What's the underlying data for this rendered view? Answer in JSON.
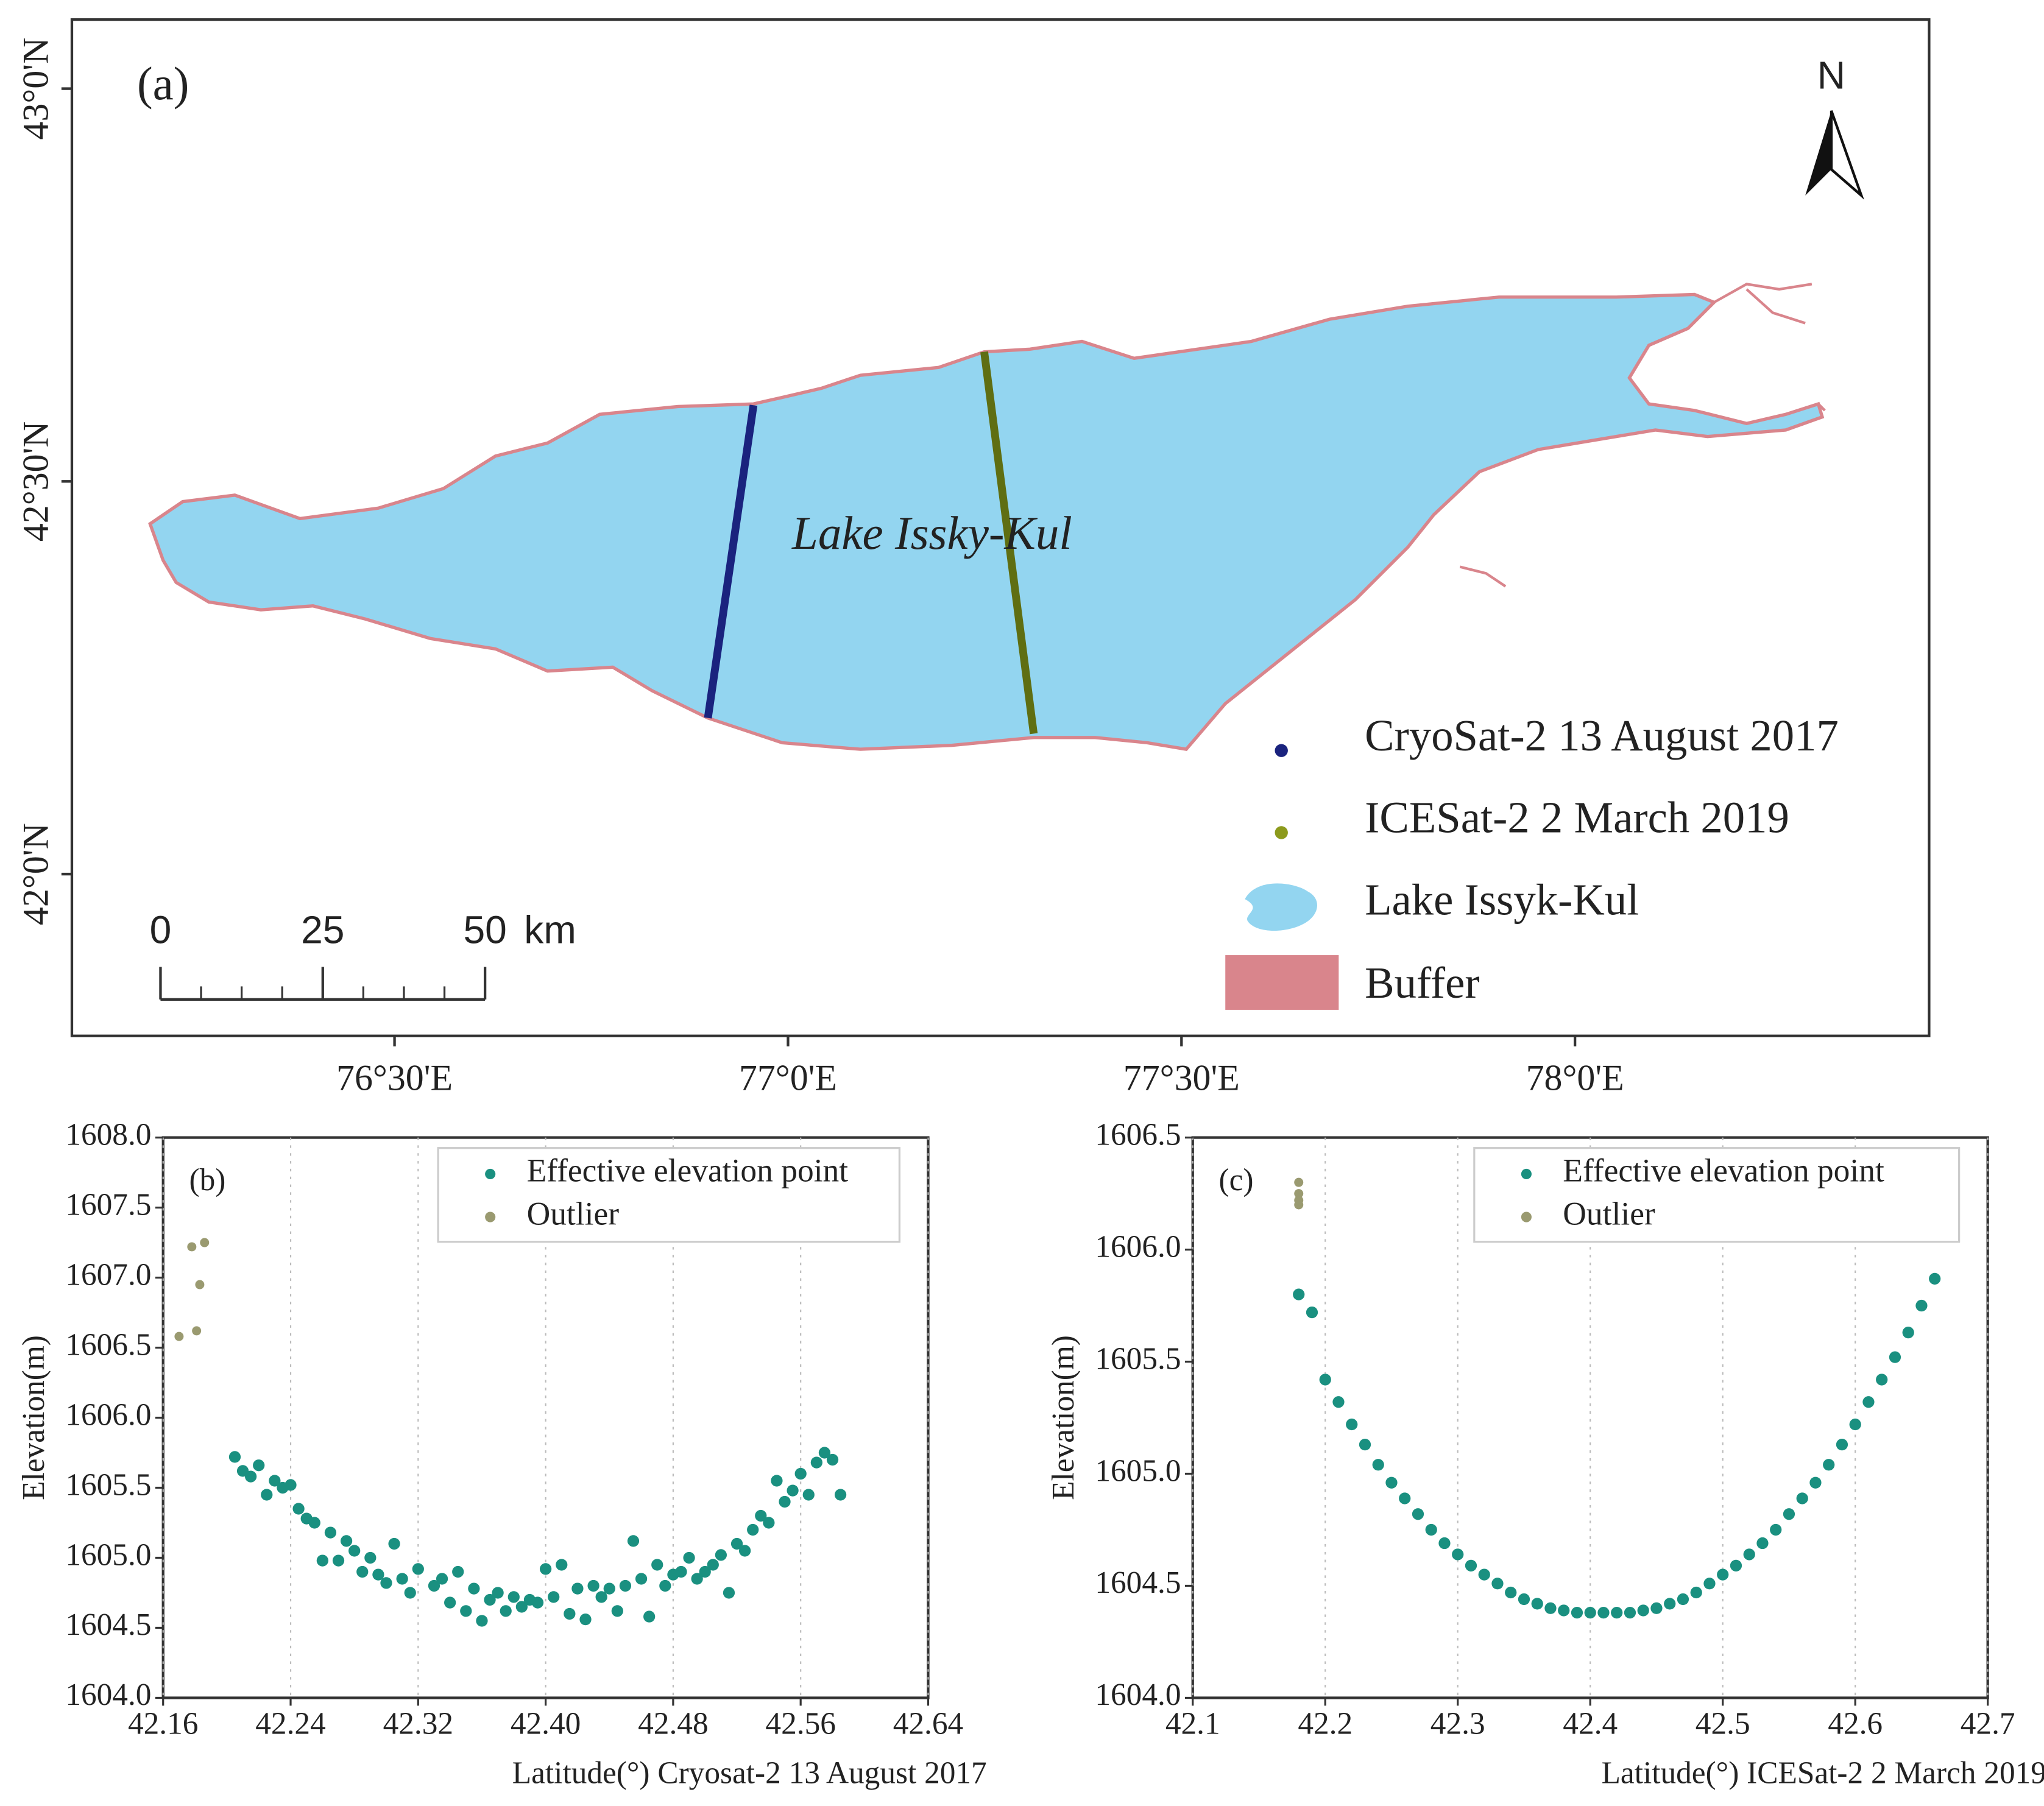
{
  "map": {
    "label": "(a)",
    "north": "N",
    "lake_label": "Lake Issky-Kul",
    "xlim": [
      76.09,
      78.45
    ],
    "ylim": [
      41.794,
      43.088
    ],
    "lat_ticks": [
      {
        "value": 43,
        "label": "43°0'N"
      },
      {
        "value": 42.5,
        "label": "42°30'N"
      },
      {
        "value": 42,
        "label": "42°0'N"
      }
    ],
    "lon_ticks": [
      {
        "value": 76.5,
        "label": "76°30'E"
      },
      {
        "value": 77,
        "label": "77°0'E"
      },
      {
        "value": 77.5,
        "label": "77°30'E"
      },
      {
        "value": 78,
        "label": "78°0'E"
      }
    ],
    "scale_bar": {
      "ticks": [
        0,
        25,
        50
      ],
      "unit": "km"
    },
    "legend": [
      {
        "label": "CryoSat-2 13 August 2017",
        "color": "#1a237e"
      },
      {
        "label": "ICESat-2  2 March 2019",
        "color": "#8c9a1c"
      },
      {
        "label": "Lake Issyk-Kul",
        "color": "#93d5f0"
      },
      {
        "label": "Buffer",
        "color": "#d9858c"
      }
    ]
  },
  "chart_data": [
    {
      "type": "scatter",
      "label": "(b)",
      "xlabel": "Latitude(°)   Cryosat-2  13 August  2017",
      "ylabel": "Elevation(m)",
      "xlim": [
        42.16,
        42.64
      ],
      "ylim": [
        1604,
        1608
      ],
      "xticks": [
        42.16,
        42.24,
        42.32,
        {
          "value": 42.4,
          "label": "42.40"
        },
        42.48,
        42.56,
        42.64
      ],
      "yticks": [
        {
          "value": 1604,
          "label": "1604.0"
        },
        1604.5,
        {
          "value": 1605,
          "label": "1605.0"
        },
        1605.5,
        {
          "value": 1606,
          "label": "1606.0"
        },
        1606.5,
        {
          "value": 1607,
          "label": "1607.0"
        },
        1607.5,
        {
          "value": 1608,
          "label": "1608.0"
        }
      ],
      "grid": true,
      "legend": "upper right",
      "series": [
        {
          "name": "Effective elevation point",
          "color": "#1a9080",
          "x": [
            42.205,
            42.21,
            42.215,
            42.22,
            42.225,
            42.23,
            42.235,
            42.24,
            42.245,
            42.25,
            42.255,
            42.26,
            42.265,
            42.27,
            42.275,
            42.28,
            42.285,
            42.29,
            42.295,
            42.3,
            42.305,
            42.31,
            42.315,
            42.32,
            42.33,
            42.335,
            42.34,
            42.345,
            42.35,
            42.355,
            42.36,
            42.365,
            42.37,
            42.375,
            42.38,
            42.385,
            42.39,
            42.395,
            42.4,
            42.405,
            42.41,
            42.415,
            42.42,
            42.425,
            42.43,
            42.435,
            42.44,
            42.445,
            42.45,
            42.455,
            42.46,
            42.465,
            42.47,
            42.475,
            42.48,
            42.485,
            42.49,
            42.495,
            42.5,
            42.505,
            42.51,
            42.515,
            42.52,
            42.525,
            42.53,
            42.535,
            42.54,
            42.545,
            42.55,
            42.555,
            42.56,
            42.565,
            42.57,
            42.575,
            42.58,
            42.585
          ],
          "values": [
            1605.72,
            1605.62,
            1605.58,
            1605.66,
            1605.45,
            1605.55,
            1605.5,
            1605.52,
            1605.35,
            1605.28,
            1605.25,
            1604.98,
            1605.18,
            1604.98,
            1605.12,
            1605.05,
            1604.9,
            1605.0,
            1604.88,
            1604.82,
            1605.1,
            1604.85,
            1604.75,
            1604.92,
            1604.8,
            1604.85,
            1604.68,
            1604.9,
            1604.62,
            1604.78,
            1604.55,
            1604.7,
            1604.75,
            1604.62,
            1604.72,
            1604.65,
            1604.7,
            1604.68,
            1604.92,
            1604.72,
            1604.95,
            1604.6,
            1604.78,
            1604.56,
            1604.8,
            1604.72,
            1604.78,
            1604.62,
            1604.8,
            1605.12,
            1604.85,
            1604.58,
            1604.95,
            1604.8,
            1604.88,
            1604.9,
            1605.0,
            1604.85,
            1604.9,
            1604.95,
            1605.02,
            1604.75,
            1605.1,
            1605.05,
            1605.2,
            1605.3,
            1605.25,
            1605.55,
            1605.4,
            1605.48,
            1605.6,
            1605.45,
            1605.68,
            1605.75,
            1605.7,
            1605.45
          ]
        },
        {
          "name": "Outlier",
          "color": "#9a9a70",
          "x": [
            42.17,
            42.178,
            42.186,
            42.183,
            42.181
          ],
          "values": [
            1606.58,
            1607.22,
            1607.25,
            1606.95,
            1606.62
          ]
        }
      ]
    },
    {
      "type": "scatter",
      "label": "(c)",
      "xlabel": "Latitude(°)   ICESat-2  2 March 2019",
      "ylabel": "Elevation(m)",
      "xlim": [
        42.1,
        42.7
      ],
      "ylim": [
        1604,
        1606.5
      ],
      "xticks": [
        42.1,
        42.2,
        42.3,
        42.4,
        42.5,
        42.6,
        42.7
      ],
      "yticks": [
        {
          "value": 1604,
          "label": "1604.0"
        },
        1604.5,
        {
          "value": 1605,
          "label": "1605.0"
        },
        1605.5,
        {
          "value": 1606,
          "label": "1606.0"
        },
        1606.5
      ],
      "grid": true,
      "legend": "upper right",
      "series": [
        {
          "name": "Effective elevation point",
          "color": "#1a9080",
          "x": [
            42.18,
            42.19,
            42.2,
            42.21,
            42.22,
            42.23,
            42.24,
            42.25,
            42.26,
            42.27,
            42.28,
            42.29,
            42.3,
            42.31,
            42.32,
            42.33,
            42.34,
            42.35,
            42.36,
            42.37,
            42.38,
            42.39,
            42.4,
            42.41,
            42.42,
            42.43,
            42.44,
            42.45,
            42.46,
            42.47,
            42.48,
            42.49,
            42.5,
            42.51,
            42.52,
            42.53,
            42.54,
            42.55,
            42.56,
            42.57,
            42.58,
            42.59,
            42.6,
            42.61,
            42.62,
            42.63,
            42.64,
            42.65,
            42.66
          ],
          "values": [
            1605.8,
            1605.72,
            1605.42,
            1605.32,
            1605.22,
            1605.13,
            1605.04,
            1604.96,
            1604.89,
            1604.82,
            1604.75,
            1604.69,
            1604.64,
            1604.59,
            1604.55,
            1604.51,
            1604.47,
            1604.44,
            1604.42,
            1604.4,
            1604.39,
            1604.38,
            1604.38,
            1604.38,
            1604.38,
            1604.38,
            1604.39,
            1604.4,
            1604.42,
            1604.44,
            1604.47,
            1604.51,
            1604.55,
            1604.59,
            1604.64,
            1604.69,
            1604.75,
            1604.82,
            1604.89,
            1604.96,
            1605.04,
            1605.13,
            1605.22,
            1605.32,
            1605.42,
            1605.52,
            1605.63,
            1605.75,
            1605.87
          ]
        },
        {
          "name": "Outlier",
          "color": "#9a9a70",
          "x": [
            42.18,
            42.18,
            42.18,
            42.18
          ],
          "values": [
            1606.2,
            1606.25,
            1606.3,
            1606.22
          ]
        }
      ]
    }
  ]
}
